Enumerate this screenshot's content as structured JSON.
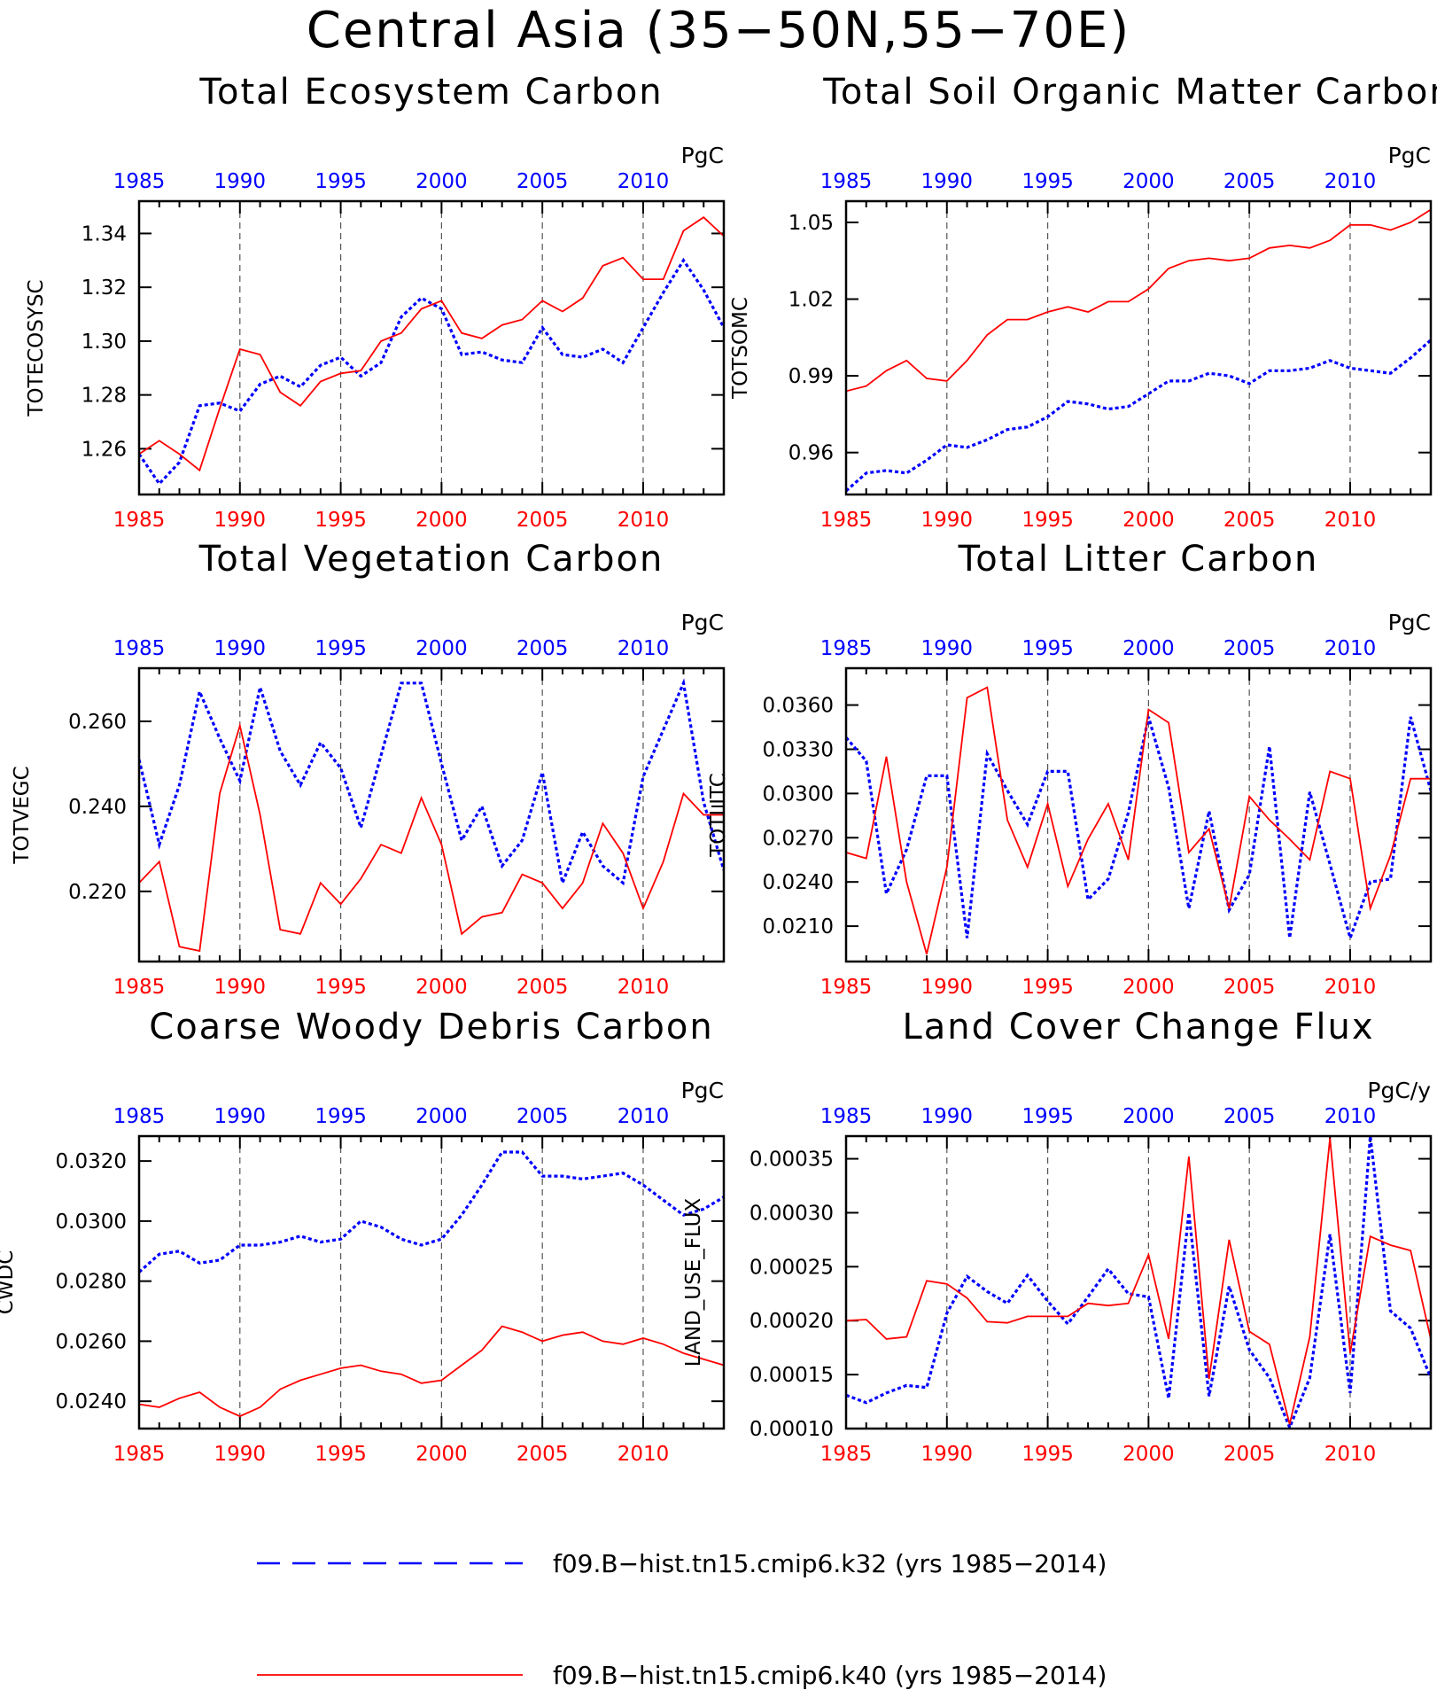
{
  "title": "Central Asia (35−50N,55−70E)",
  "colors": {
    "top_axis": "#0000ff",
    "bottom_axis": "#ff0000",
    "series_k32": "#0000ff",
    "series_k40": "#ff0000"
  },
  "legend": [
    {
      "label": "f09.B−hist.tn15.cmip6.k32 (yrs 1985−2014)",
      "color": "#0000ff",
      "style": "dashed"
    },
    {
      "label": "f09.B−hist.tn15.cmip6.k40 (yrs 1985−2014)",
      "color": "#ff0000",
      "style": "solid"
    }
  ],
  "chart_data": [
    {
      "type": "line",
      "title": "Total Ecosystem Carbon",
      "units": "PgC",
      "ylabel": "TOTECOSYSC",
      "xlim": [
        1985,
        2014
      ],
      "ylim": [
        1.243,
        1.352
      ],
      "yticks": [
        "1.26",
        "1.28",
        "1.30",
        "1.32",
        "1.34"
      ],
      "ytick_values": [
        1.26,
        1.28,
        1.3,
        1.32,
        1.34
      ],
      "xticks": [
        1985,
        1990,
        1995,
        2000,
        2005,
        2010
      ],
      "grid": "vertical dashed at tick years",
      "x": [
        1985,
        1986,
        1987,
        1988,
        1989,
        1990,
        1991,
        1992,
        1993,
        1994,
        1995,
        1996,
        1997,
        1998,
        1999,
        2000,
        2001,
        2002,
        2003,
        2004,
        2005,
        2006,
        2007,
        2008,
        2009,
        2010,
        2011,
        2012,
        2013,
        2014
      ],
      "series": [
        {
          "name": "f09.B−hist.tn15.cmip6.k32",
          "values": [
            1.258,
            1.247,
            1.255,
            1.276,
            1.277,
            1.274,
            1.284,
            1.287,
            1.283,
            1.291,
            1.294,
            1.287,
            1.292,
            1.309,
            1.316,
            1.312,
            1.295,
            1.296,
            1.293,
            1.292,
            1.305,
            1.295,
            1.294,
            1.297,
            1.292,
            1.305,
            1.318,
            1.33,
            1.319,
            1.305
          ]
        },
        {
          "name": "f09.B−hist.tn15.cmip6.k40",
          "values": [
            1.258,
            1.263,
            1.258,
            1.252,
            1.275,
            1.297,
            1.295,
            1.281,
            1.276,
            1.285,
            1.288,
            1.289,
            1.3,
            1.303,
            1.312,
            1.315,
            1.303,
            1.301,
            1.306,
            1.308,
            1.315,
            1.311,
            1.316,
            1.328,
            1.331,
            1.323,
            1.323,
            1.341,
            1.346,
            1.339
          ]
        }
      ]
    },
    {
      "type": "line",
      "title": "Total Soil Organic Matter Carbon",
      "units": "PgC",
      "ylabel": "TOTSOMC",
      "xlim": [
        1985,
        2014
      ],
      "ylim": [
        0.9436,
        1.0583
      ],
      "yticks": [
        "0.96",
        "0.99",
        "1.02",
        "1.05"
      ],
      "ytick_values": [
        0.96,
        0.99,
        1.02,
        1.05
      ],
      "xticks": [
        1985,
        1990,
        1995,
        2000,
        2005,
        2010
      ],
      "grid": "vertical dashed at tick years",
      "x": [
        1985,
        1986,
        1987,
        1988,
        1989,
        1990,
        1991,
        1992,
        1993,
        1994,
        1995,
        1996,
        1997,
        1998,
        1999,
        2000,
        2001,
        2002,
        2003,
        2004,
        2005,
        2006,
        2007,
        2008,
        2009,
        2010,
        2011,
        2012,
        2013,
        2014
      ],
      "series": [
        {
          "name": "f09.B−hist.tn15.cmip6.k32",
          "values": [
            0.945,
            0.952,
            0.953,
            0.952,
            0.957,
            0.963,
            0.962,
            0.965,
            0.969,
            0.97,
            0.974,
            0.98,
            0.979,
            0.977,
            0.978,
            0.983,
            0.988,
            0.988,
            0.991,
            0.99,
            0.987,
            0.992,
            0.992,
            0.993,
            0.996,
            0.993,
            0.992,
            0.991,
            0.997,
            1.004
          ]
        },
        {
          "name": "f09.B−hist.tn15.cmip6.k40",
          "values": [
            0.984,
            0.986,
            0.992,
            0.996,
            0.989,
            0.988,
            0.996,
            1.006,
            1.012,
            1.012,
            1.015,
            1.017,
            1.015,
            1.019,
            1.019,
            1.024,
            1.032,
            1.035,
            1.036,
            1.035,
            1.036,
            1.04,
            1.041,
            1.04,
            1.043,
            1.049,
            1.049,
            1.047,
            1.05,
            1.055
          ]
        }
      ]
    },
    {
      "type": "line",
      "title": "Total Vegetation Carbon",
      "units": "PgC",
      "ylabel": "TOTVEGC",
      "xlim": [
        1985,
        2014
      ],
      "ylim": [
        0.2035,
        0.2725
      ],
      "yticks": [
        "0.220",
        "0.240",
        "0.260"
      ],
      "ytick_values": [
        0.22,
        0.24,
        0.26
      ],
      "xticks": [
        1985,
        1990,
        1995,
        2000,
        2005,
        2010
      ],
      "grid": "vertical dashed at tick years",
      "x": [
        1985,
        1986,
        1987,
        1988,
        1989,
        1990,
        1991,
        1992,
        1993,
        1994,
        1995,
        1996,
        1997,
        1998,
        1999,
        2000,
        2001,
        2002,
        2003,
        2004,
        2005,
        2006,
        2007,
        2008,
        2009,
        2010,
        2011,
        2012,
        2013,
        2014
      ],
      "series": [
        {
          "name": "f09.B−hist.tn15.cmip6.k32",
          "values": [
            0.251,
            0.231,
            0.245,
            0.267,
            0.256,
            0.246,
            0.268,
            0.253,
            0.245,
            0.255,
            0.249,
            0.235,
            0.252,
            0.269,
            0.269,
            0.25,
            0.232,
            0.24,
            0.226,
            0.232,
            0.248,
            0.222,
            0.234,
            0.226,
            0.222,
            0.247,
            0.258,
            0.269,
            0.241,
            0.225
          ]
        },
        {
          "name": "f09.B−hist.tn15.cmip6.k40",
          "values": [
            0.222,
            0.227,
            0.207,
            0.206,
            0.243,
            0.259,
            0.238,
            0.211,
            0.21,
            0.222,
            0.217,
            0.223,
            0.231,
            0.229,
            0.242,
            0.231,
            0.21,
            0.214,
            0.215,
            0.224,
            0.222,
            0.216,
            0.222,
            0.236,
            0.229,
            0.216,
            0.227,
            0.243,
            0.238,
            0.238
          ]
        }
      ]
    },
    {
      "type": "line",
      "title": "Total Litter Carbon",
      "units": "PgC",
      "ylabel": "TOTLITC",
      "xlim": [
        1985,
        2014
      ],
      "ylim": [
        0.0186,
        0.0385
      ],
      "yticks": [
        "0.0210",
        "0.0240",
        "0.0270",
        "0.0300",
        "0.0330",
        "0.0360"
      ],
      "ytick_values": [
        0.021,
        0.024,
        0.027,
        0.03,
        0.033,
        0.036
      ],
      "xticks": [
        1985,
        1990,
        1995,
        2000,
        2005,
        2010
      ],
      "grid": "vertical dashed at tick years",
      "x": [
        1985,
        1986,
        1987,
        1988,
        1989,
        1990,
        1991,
        1992,
        1993,
        1994,
        1995,
        1996,
        1997,
        1998,
        1999,
        2000,
        2001,
        2002,
        2003,
        2004,
        2005,
        2006,
        2007,
        2008,
        2009,
        2010,
        2011,
        2012,
        2013,
        2014
      ],
      "series": [
        {
          "name": "f09.B−hist.tn15.cmip6.k32",
          "values": [
            0.0338,
            0.0322,
            0.0232,
            0.0262,
            0.0312,
            0.0312,
            0.0202,
            0.0327,
            0.0302,
            0.0279,
            0.0315,
            0.0315,
            0.0228,
            0.0242,
            0.0287,
            0.0352,
            0.0304,
            0.0222,
            0.0288,
            0.0221,
            0.0245,
            0.0332,
            0.0202,
            0.0301,
            0.0252,
            0.0202,
            0.024,
            0.0242,
            0.0352,
            0.0302
          ]
        },
        {
          "name": "f09.B−hist.tn15.cmip6.k40",
          "values": [
            0.026,
            0.0256,
            0.0325,
            0.024,
            0.0191,
            0.025,
            0.0365,
            0.0372,
            0.0282,
            0.025,
            0.0293,
            0.0237,
            0.0269,
            0.0293,
            0.0255,
            0.0357,
            0.0348,
            0.026,
            0.0276,
            0.0222,
            0.0298,
            0.0282,
            0.0269,
            0.0255,
            0.0315,
            0.031,
            0.0222,
            0.0258,
            0.031,
            0.031
          ]
        }
      ]
    },
    {
      "type": "line",
      "title": "Coarse Woody Debris Carbon",
      "units": "PgC",
      "ylabel": "CWDC",
      "xlim": [
        1985,
        2014
      ],
      "ylim": [
        0.02309,
        0.03283
      ],
      "yticks": [
        "0.0240",
        "0.0260",
        "0.0280",
        "0.0300",
        "0.0320"
      ],
      "ytick_values": [
        0.024,
        0.026,
        0.028,
        0.03,
        0.032
      ],
      "xticks": [
        1985,
        1990,
        1995,
        2000,
        2005,
        2010
      ],
      "grid": "vertical dashed at tick years",
      "x": [
        1985,
        1986,
        1987,
        1988,
        1989,
        1990,
        1991,
        1992,
        1993,
        1994,
        1995,
        1996,
        1997,
        1998,
        1999,
        2000,
        2001,
        2002,
        2003,
        2004,
        2005,
        2006,
        2007,
        2008,
        2009,
        2010,
        2011,
        2012,
        2013,
        2014
      ],
      "series": [
        {
          "name": "f09.B−hist.tn15.cmip6.k32",
          "values": [
            0.0283,
            0.0289,
            0.029,
            0.0286,
            0.0287,
            0.0292,
            0.0292,
            0.0293,
            0.0295,
            0.0293,
            0.0294,
            0.03,
            0.0298,
            0.0294,
            0.0292,
            0.0294,
            0.0302,
            0.0312,
            0.0323,
            0.0323,
            0.0315,
            0.0315,
            0.0314,
            0.0315,
            0.0316,
            0.0312,
            0.0307,
            0.0302,
            0.0304,
            0.0308
          ]
        },
        {
          "name": "f09.B−hist.tn15.cmip6.k40",
          "values": [
            0.0239,
            0.0238,
            0.0241,
            0.0243,
            0.0238,
            0.0235,
            0.0238,
            0.0244,
            0.0247,
            0.0249,
            0.0251,
            0.0252,
            0.025,
            0.0249,
            0.0246,
            0.0247,
            0.0252,
            0.0257,
            0.0265,
            0.0263,
            0.026,
            0.0262,
            0.0263,
            0.026,
            0.0259,
            0.0261,
            0.0259,
            0.0256,
            0.0254,
            0.0252
          ]
        }
      ]
    },
    {
      "type": "line",
      "title": "Land Cover Change Flux",
      "units": "PgC/y",
      "ylabel": "LAND_USE_FLUX",
      "xlim": [
        1985,
        2014
      ],
      "ylim": [
        0.0001,
        0.000371
      ],
      "yticks": [
        "0.00010",
        "0.00015",
        "0.00020",
        "0.00025",
        "0.00030",
        "0.00035"
      ],
      "ytick_values": [
        0.0001,
        0.00015,
        0.0002,
        0.00025,
        0.0003,
        0.00035
      ],
      "xticks": [
        1985,
        1990,
        1995,
        2000,
        2005,
        2010
      ],
      "grid": "vertical dashed at tick years",
      "x": [
        1985,
        1986,
        1987,
        1988,
        1989,
        1990,
        1991,
        1992,
        1993,
        1994,
        1995,
        1996,
        1997,
        1998,
        1999,
        2000,
        2001,
        2002,
        2003,
        2004,
        2005,
        2006,
        2007,
        2008,
        2009,
        2010,
        2011,
        2012,
        2013,
        2014
      ],
      "series": [
        {
          "name": "f09.B−hist.tn15.cmip6.k32",
          "values": [
            0.000131,
            0.000124,
            0.000133,
            0.00014,
            0.000138,
            0.000207,
            0.000241,
            0.000227,
            0.000216,
            0.000242,
            0.000218,
            0.000197,
            0.000222,
            0.000248,
            0.000225,
            0.000222,
            0.000128,
            0.0003,
            0.00013,
            0.000232,
            0.000173,
            0.000147,
            0.000101,
            0.000147,
            0.00028,
            0.000133,
            0.000371,
            0.000209,
            0.000193,
            0.000147
          ]
        },
        {
          "name": "f09.B−hist.tn15.cmip6.k40",
          "values": [
            0.0002,
            0.000201,
            0.000183,
            0.000185,
            0.000237,
            0.000234,
            0.000221,
            0.000199,
            0.000198,
            0.000204,
            0.000204,
            0.000204,
            0.000216,
            0.000214,
            0.000216,
            0.000261,
            0.000183,
            0.000352,
            0.000146,
            0.000275,
            0.00019,
            0.000178,
            0.000104,
            0.000185,
            0.000369,
            0.00017,
            0.000278,
            0.00027,
            0.000265,
            0.000183
          ]
        }
      ]
    }
  ]
}
